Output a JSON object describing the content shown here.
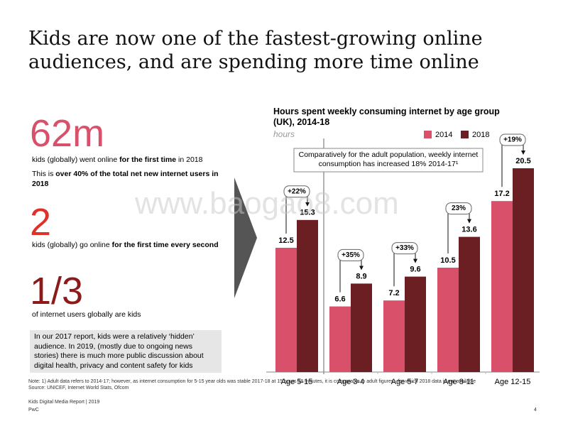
{
  "slide_title": "Kids are now one of the fastest-growing online audiences, and are spending more time online",
  "watermark": "www.baogao8.com",
  "stats": [
    {
      "figure": "62m",
      "text": [
        "kids (globally) went online ",
        "for the first time",
        " in 2018"
      ],
      "extra": [
        "This is ",
        "over 40% of the total net new internet users in 2018"
      ]
    },
    {
      "figure": "2",
      "text": [
        "kids (globally) go online ",
        "for the first time every second"
      ]
    },
    {
      "figure": "1/3",
      "text": [
        "of internet users globally are kids"
      ]
    }
  ],
  "box_text": "In our 2017 report, kids were a relatively ‘hidden’ audience. In 2019, (mostly due to ongoing news stories) there is much more public discussion about digital health, privacy and content safety for kids",
  "chart_data": {
    "type": "bar",
    "title": "Hours spent weekly consuming internet by age group (UK), 2014-18",
    "subtitle": "hours",
    "categories": [
      "Age 5-15",
      "Age 3-4",
      "Age 5-7",
      "Age 8-11",
      "Age 12-15"
    ],
    "series": [
      {
        "name": "2014",
        "color": "#d9506b",
        "values": [
          12.5,
          6.6,
          7.2,
          10.5,
          17.2
        ]
      },
      {
        "name": "2018",
        "color": "#6b1f22",
        "values": [
          15.3,
          8.9,
          9.6,
          13.6,
          20.5
        ]
      }
    ],
    "annotations": [
      "+22%",
      "+35%",
      "+33%",
      "23%",
      "+19%"
    ],
    "callout": "Comparatively for the adult population, weekly internet consumption has increased 18% 2014-17¹"
  },
  "note": "Note: 1) Adult data refers to 2014-17; however, as internet consumption for 5-15 year olds was stable 2017-18 at 15 hours 18 minutes, it is comparable to adult figures - for which 2018 data is not available",
  "source": "Source: UNICEF, Internet World Stats, Ofcom",
  "footer": {
    "report": "Kids Digital Media Report | 2019",
    "brand": "PwC",
    "page": "4"
  }
}
